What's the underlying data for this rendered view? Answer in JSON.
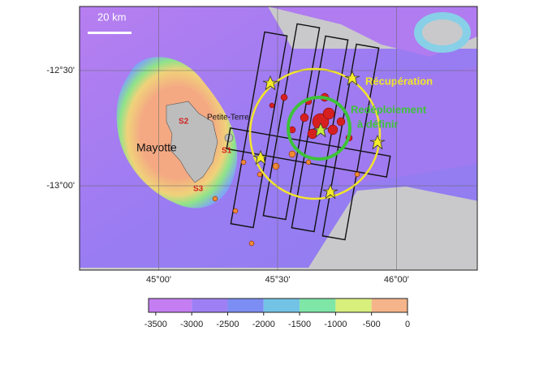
{
  "map": {
    "scale_bar": "20 km",
    "lon_lim": [
      44.667,
      46.34
    ],
    "lat_lim": [
      -13.366,
      -12.222
    ],
    "lon_ticks": [
      {
        "value": 45,
        "label": "45°00'"
      },
      {
        "value": 45.5,
        "label": "45°30'"
      },
      {
        "value": 46,
        "label": "46°00'"
      }
    ],
    "lat_ticks": [
      {
        "value": -12.5,
        "label": "-12°30'"
      },
      {
        "value": -13,
        "label": "-13°00'"
      }
    ],
    "labels": {
      "mayotte": "Mayotte",
      "petite_terre": "Petite-Terre",
      "s1": "S1",
      "s2": "S2",
      "s3": "S3",
      "recuperation": "Récupération",
      "redeploiement": [
        "Redéploiement",
        "à définir"
      ]
    }
  },
  "colorbar": {
    "bounds": [
      -3600,
      -3000,
      -2500,
      -2000,
      -1500,
      -1000,
      -500,
      0
    ],
    "colors": [
      "#c57ef2",
      "#9e80f4",
      "#7c8ef3",
      "#73c3e6",
      "#7ee6a6",
      "#d8ef7c",
      "#f6b48a"
    ],
    "ticks": [
      -3500,
      -3000,
      -2500,
      -2000,
      -1500,
      -1000,
      -500,
      0
    ]
  }
}
